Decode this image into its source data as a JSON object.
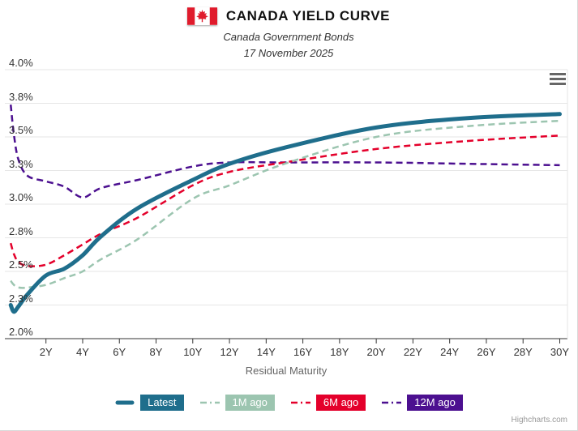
{
  "footer": {
    "credit": "Highcharts.com"
  },
  "chart_data": {
    "type": "line",
    "title": "CANADA YIELD CURVE",
    "subtitle": "Canada Government Bonds",
    "date": "17 November 2025",
    "xlabel": "Residual Maturity",
    "ylabel": "",
    "xlim": [
      -0.24,
      30.42
    ],
    "ylim": [
      2.0,
      4.0
    ],
    "grid": true,
    "legend_position": "bottom",
    "x_unit": "years",
    "x": [
      0.08,
      0.25,
      0.5,
      1,
      2,
      3,
      4,
      5,
      7,
      10,
      12,
      15,
      20,
      25,
      30
    ],
    "xticks": {
      "values": [
        2,
        4,
        6,
        8,
        10,
        12,
        14,
        16,
        18,
        20,
        22,
        24,
        26,
        28,
        30
      ],
      "labels": [
        "2Y",
        "4Y",
        "6Y",
        "8Y",
        "10Y",
        "12Y",
        "14Y",
        "16Y",
        "18Y",
        "20Y",
        "22Y",
        "24Y",
        "26Y",
        "28Y",
        "30Y"
      ]
    },
    "yticks": {
      "values": [
        4.0,
        3.75,
        3.5,
        3.25,
        3.0,
        2.75,
        2.5,
        2.25,
        2.0
      ],
      "labels": [
        "4.0%",
        "3.8%",
        "3.5%",
        "3.3%",
        "3.0%",
        "2.8%",
        "2.5%",
        "2.3%",
        "2.0%"
      ]
    },
    "series": [
      {
        "name": "Latest",
        "color": "#1f6e8c",
        "style": "solid",
        "width": 5,
        "values": [
          2.25,
          2.2,
          2.24,
          2.33,
          2.47,
          2.52,
          2.62,
          2.76,
          2.97,
          3.18,
          3.3,
          3.42,
          3.57,
          3.64,
          3.67
        ]
      },
      {
        "name": "1M ago",
        "color": "#9cc5b0",
        "style": "dashed",
        "width": 2.5,
        "values": [
          2.43,
          2.4,
          2.38,
          2.38,
          2.4,
          2.45,
          2.5,
          2.59,
          2.74,
          3.04,
          3.14,
          3.3,
          3.5,
          3.58,
          3.62
        ]
      },
      {
        "name": "6M ago",
        "color": "#e4002b",
        "style": "dashed",
        "width": 2.5,
        "values": [
          2.71,
          2.63,
          2.57,
          2.54,
          2.55,
          2.62,
          2.7,
          2.78,
          2.9,
          3.14,
          3.24,
          3.31,
          3.41,
          3.47,
          3.51
        ]
      },
      {
        "name": "12M ago",
        "color": "#4c1090",
        "style": "dashed",
        "width": 2.5,
        "values": [
          3.74,
          3.52,
          3.33,
          3.21,
          3.17,
          3.13,
          3.05,
          3.12,
          3.18,
          3.28,
          3.31,
          3.31,
          3.31,
          3.3,
          3.29
        ]
      }
    ],
    "axis_colors": {
      "grid": "#e6e6e6",
      "axis_line": "#333333",
      "tick": "#333333"
    }
  }
}
